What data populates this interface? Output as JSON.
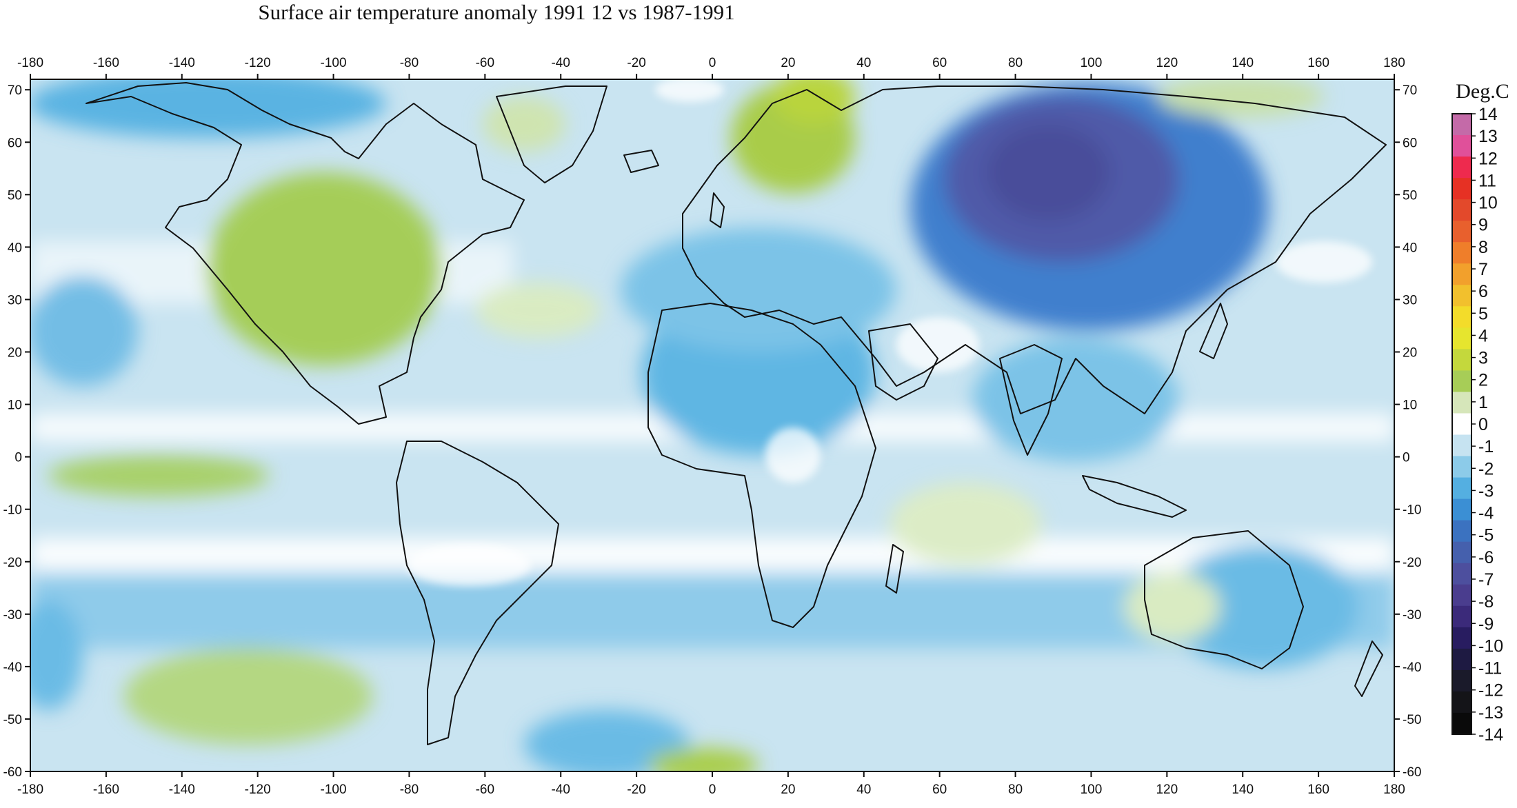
{
  "title": "Surface air temperature anomaly 1991 12 vs 1987-1991",
  "map": {
    "lon_ticks": [
      "-180",
      "-160",
      "-140",
      "-120",
      "-100",
      "-80",
      "-60",
      "-40",
      "-20",
      "0",
      "20",
      "40",
      "60",
      "80",
      "100",
      "120",
      "140",
      "160",
      "180"
    ],
    "lat_ticks": [
      "70",
      "60",
      "50",
      "40",
      "30",
      "20",
      "10",
      "0",
      "-10",
      "-20",
      "-30",
      "-40",
      "-50",
      "-60"
    ],
    "lon_range": [
      -180,
      180
    ],
    "lat_range": [
      -60,
      72
    ]
  },
  "colorbar": {
    "title": "Deg.C",
    "labels": [
      "14",
      "13",
      "12",
      "11",
      "10",
      "9",
      "8",
      "7",
      "6",
      "5",
      "4",
      "3",
      "2",
      "1",
      "0",
      "-1",
      "-2",
      "-3",
      "-4",
      "-5",
      "-6",
      "-7",
      "-8",
      "-9",
      "-10",
      "-11",
      "-12",
      "-13",
      "-14"
    ],
    "colors": [
      "#c46aa8",
      "#e0509a",
      "#ee2a4e",
      "#e63124",
      "#e3492b",
      "#e8602d",
      "#ef7e2a",
      "#f2a02c",
      "#f2c02d",
      "#f3dc2a",
      "#e6e52e",
      "#c4d83c",
      "#a7cd57",
      "#d6e6ba",
      "#ffffff",
      "#c6e3f1",
      "#8ccbe9",
      "#54afe1",
      "#3b8fd4",
      "#3b72c0",
      "#4560ad",
      "#4d4f9e",
      "#4a3d8e",
      "#3b2a7a",
      "#281c60",
      "#1e1a42",
      "#1a1a2a",
      "#141418",
      "#0a0a0a"
    ]
  },
  "features": [
    {
      "name": "siberia-cold-anomaly",
      "color": "#4a5aa6"
    },
    {
      "name": "north-america-warm-anomaly",
      "color": "#9fc85a"
    },
    {
      "name": "scandinavia-warm-anomaly",
      "color": "#9fc63a"
    }
  ]
}
